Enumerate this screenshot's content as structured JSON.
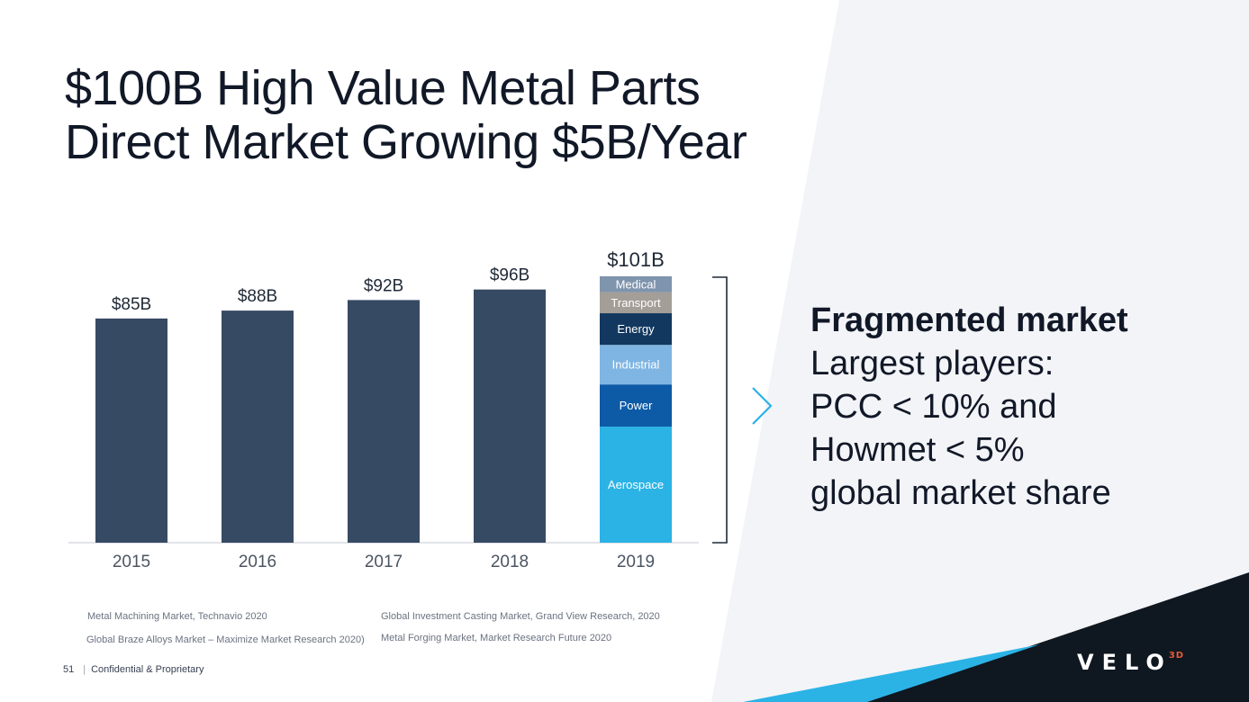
{
  "title": {
    "line1": "$100B High Value Metal Parts",
    "line2": "Direct Market Growing $5B/Year"
  },
  "chart_data": {
    "type": "bar",
    "categories": [
      "2015",
      "2016",
      "2017",
      "2018",
      "2019"
    ],
    "values": [
      85,
      88,
      92,
      96,
      101
    ],
    "value_labels": [
      "$85B",
      "$88B",
      "$92B",
      "$96B",
      "$101B"
    ],
    "unit": "$B",
    "ylim": [
      0,
      101
    ],
    "stacked_breakdown": {
      "category": "2019",
      "segments": [
        {
          "name": "Aerospace",
          "value": 44.0,
          "color": "#2bb3e6"
        },
        {
          "name": "Power",
          "value": 16.0,
          "color": "#0d5aa7"
        },
        {
          "name": "Industrial",
          "value": 15.0,
          "color": "#7fb5e2"
        },
        {
          "name": "Energy",
          "value": 12.0,
          "color": "#12385f"
        },
        {
          "name": "Transport",
          "value": 8.0,
          "color": "#a49e98"
        },
        {
          "name": "Medical",
          "value": 6.0,
          "color": "#7f94ad"
        }
      ]
    },
    "bar_color": "#374a64",
    "grid": false,
    "xlabel": "",
    "ylabel": ""
  },
  "side_text": {
    "heading": "Fragmented market",
    "lines": [
      "Largest players:",
      "PCC < 10% and",
      "Howmet < 5%",
      "global market share"
    ]
  },
  "sources": {
    "s1": "Metal Machining Market, Technavio 2020",
    "s2": "Global Braze Alloys Market – Maximize Market Research 2020)",
    "s3": "Global Investment Casting Market, Grand View Research, 2020",
    "s4": "Metal Forging Market,  Market Research Future 2020"
  },
  "footer": {
    "page_number": "51",
    "label": "Confidential & Proprietary"
  },
  "logo": {
    "text": "VELO",
    "suffix": "3D"
  },
  "colors": {
    "accent": "#2bb3e6",
    "dark": "#0f1720",
    "panel": "#f3f4f8"
  }
}
